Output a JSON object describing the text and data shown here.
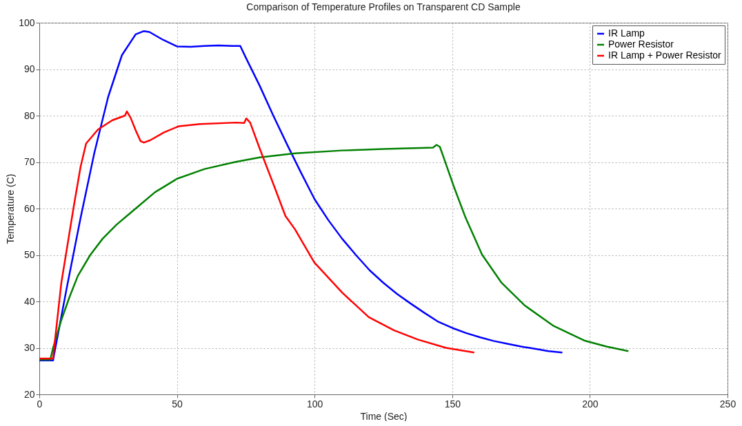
{
  "chart_data": {
    "type": "line",
    "title": "Comparison of Temperature Profiles on Transparent CD Sample",
    "xlabel": "Time (Sec)",
    "ylabel": "Temperature (C)",
    "xlim": [
      0,
      250
    ],
    "ylim": [
      20,
      100
    ],
    "xticks": [
      0,
      50,
      100,
      150,
      200,
      250
    ],
    "yticks": [
      20,
      30,
      40,
      50,
      60,
      70,
      80,
      90,
      100
    ],
    "grid": true,
    "legend": "top right",
    "series": [
      {
        "name": "IR Lamp",
        "color": "#0000ff",
        "x": [
          0,
          5,
          5.2,
          10,
          15,
          20,
          25,
          30,
          35,
          38,
          40,
          45,
          50,
          55,
          60,
          65,
          70,
          73,
          75,
          80,
          85,
          90,
          95,
          100,
          105,
          110,
          115,
          120,
          125,
          130,
          135,
          140,
          145,
          150,
          155,
          160,
          165,
          170,
          175,
          180,
          185,
          190
        ],
        "values": [
          27.3,
          27.3,
          28,
          43,
          58,
          72,
          84,
          93,
          97.5,
          98.2,
          98,
          96.3,
          94.9,
          94.8,
          95,
          95.1,
          95,
          95,
          92.5,
          86.5,
          80,
          73.8,
          67.8,
          62,
          57.5,
          53.5,
          50,
          46.7,
          44,
          41.6,
          39.5,
          37.5,
          35.6,
          34.3,
          33.2,
          32.3,
          31.5,
          30.9,
          30.3,
          29.8,
          29.3,
          29
        ]
      },
      {
        "name": "Power Resistor",
        "color": "#008000",
        "x": [
          0,
          4,
          5,
          8,
          11,
          14,
          18.5,
          23,
          28,
          33,
          37,
          42,
          50,
          60,
          71,
          80,
          93,
          110,
          125,
          143,
          144.3,
          145.5,
          147,
          150.6,
          154.8,
          160.8,
          167.8,
          176.4,
          186.6,
          197.9,
          206,
          214
        ],
        "values": [
          27.5,
          27.5,
          30,
          36,
          41,
          45.5,
          50,
          53.5,
          56.5,
          59,
          61,
          63.5,
          66.4,
          68.5,
          70,
          71,
          71.9,
          72.5,
          72.8,
          73.1,
          73.7,
          73.3,
          70.8,
          64.7,
          58.1,
          50.1,
          44.1,
          39.1,
          34.8,
          31.6,
          30.3,
          29.3
        ]
      },
      {
        "name": "IR Lamp + Power Resistor",
        "color": "#ff0000",
        "x": [
          0,
          5,
          5.2,
          8,
          12.5,
          15,
          17,
          21.3,
          26.5,
          31.1,
          31.8,
          33.2,
          35.1,
          36.8,
          38,
          40.3,
          45.3,
          50.6,
          58.4,
          71.4,
          74.4,
          75.2,
          76.6,
          80,
          85.2,
          89.4,
          92.9,
          99.9,
          110.2,
          119.7,
          128.8,
          137.5,
          147.8,
          158
        ],
        "values": [
          27.7,
          27.7,
          29,
          44,
          60.4,
          69,
          74,
          77,
          79,
          80,
          80.9,
          79.5,
          76.7,
          74.5,
          74.2,
          74.7,
          76.4,
          77.7,
          78.2,
          78.5,
          78.4,
          79.4,
          78.5,
          73,
          65,
          58.4,
          55.5,
          48.4,
          41.8,
          36.6,
          33.8,
          31.8,
          30,
          29
        ]
      }
    ]
  }
}
